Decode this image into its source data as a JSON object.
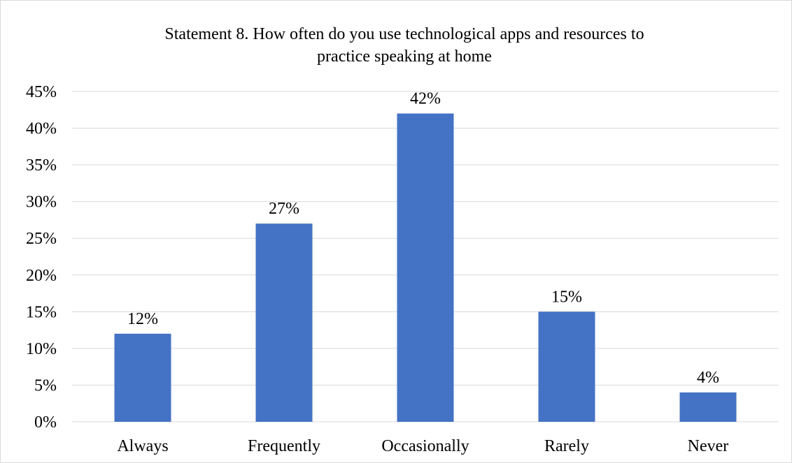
{
  "chart_data": {
    "type": "bar",
    "title_lines": [
      "Statement 8. How often do you use technological apps and resources to",
      "practice speaking at home"
    ],
    "categories": [
      "Always",
      "Frequently",
      "Occasionally",
      "Rarely",
      "Never"
    ],
    "values": [
      12,
      27,
      42,
      15,
      4
    ],
    "data_labels": [
      "12%",
      "27%",
      "42%",
      "15%",
      "4%"
    ],
    "y_ticks": [
      "0%",
      "5%",
      "10%",
      "15%",
      "20%",
      "25%",
      "30%",
      "35%",
      "40%",
      "45%"
    ],
    "ylim": [
      0,
      45
    ],
    "y_step": 5,
    "bar_color": "#4472c4",
    "grid": true,
    "legend": "none"
  }
}
